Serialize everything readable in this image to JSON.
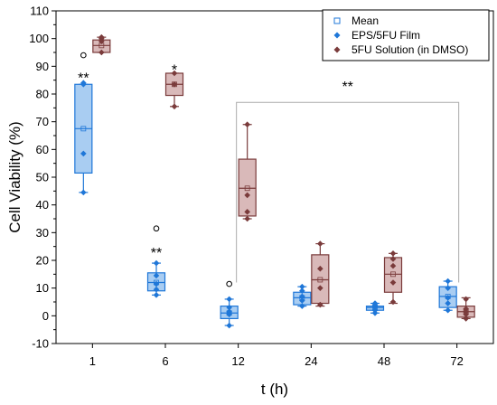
{
  "chart_data": {
    "type": "box",
    "xlabel": "t (h)",
    "ylabel": "Cell Viability (%)",
    "categories": [
      "1",
      "6",
      "12",
      "24",
      "48",
      "72"
    ],
    "ylim": [
      -10,
      110
    ],
    "yticks": [
      -10,
      0,
      10,
      20,
      30,
      40,
      50,
      60,
      70,
      80,
      90,
      100,
      110
    ],
    "grid": false,
    "legend_position": "top-right",
    "legend": {
      "mean_label": "Mean"
    },
    "series": [
      {
        "name": "EPS/5FU Film",
        "color": "#1f77d8",
        "fill": "#a9cdf2",
        "boxes": [
          {
            "q1": 51.5,
            "median": 67.5,
            "q3": 83.5,
            "whisker_low": 44.5,
            "whisker_high": 83.5,
            "mean": 67.5,
            "points": [
              44.5,
              58.5,
              83.5,
              84.0
            ],
            "outliers": [
              94.0
            ]
          },
          {
            "q1": 9.0,
            "median": 12.0,
            "q3": 15.5,
            "whisker_low": 7.5,
            "whisker_high": 19.0,
            "mean": 12.0,
            "points": [
              7.5,
              9.5,
              11.5,
              14.5,
              19.0
            ],
            "outliers": [
              31.5
            ]
          },
          {
            "q1": -1.0,
            "median": 1.0,
            "q3": 3.5,
            "whisker_low": -3.5,
            "whisker_high": 6.0,
            "mean": 1.0,
            "points": [
              -3.5,
              0.5,
              1.5,
              3.0,
              6.0
            ],
            "outliers": [
              11.5
            ]
          },
          {
            "q1": 4.0,
            "median": 6.5,
            "q3": 8.5,
            "whisker_low": 3.5,
            "whisker_high": 10.5,
            "mean": 6.5,
            "points": [
              3.5,
              5.5,
              7.0,
              9.0,
              10.5
            ],
            "outliers": []
          },
          {
            "q1": 2.0,
            "median": 3.0,
            "q3": 3.5,
            "whisker_low": 1.0,
            "whisker_high": 4.5,
            "mean": 3.0,
            "points": [
              1.0,
              2.0,
              3.0,
              4.0,
              4.5
            ],
            "outliers": []
          },
          {
            "q1": 3.0,
            "median": 7.0,
            "q3": 10.5,
            "whisker_low": 2.0,
            "whisker_high": 12.5,
            "mean": 7.0,
            "points": [
              2.0,
              4.5,
              6.5,
              10.0,
              12.5
            ],
            "outliers": []
          }
        ]
      },
      {
        "name": "5FU Solution (in DMSO)",
        "color": "#7a3b3b",
        "fill": "#d9b9b9",
        "boxes": [
          {
            "q1": 95.0,
            "median": 97.5,
            "q3": 99.5,
            "whisker_low": 95.0,
            "whisker_high": 100.5,
            "mean": 97.5,
            "points": [
              95.0,
              99.0,
              100.0,
              100.5
            ],
            "outliers": []
          },
          {
            "q1": 79.5,
            "median": 83.5,
            "q3": 87.5,
            "whisker_low": 75.5,
            "whisker_high": 87.5,
            "mean": 83.5,
            "points": [
              75.5,
              83.5,
              87.5
            ],
            "outliers": []
          },
          {
            "q1": 36.0,
            "median": 46.0,
            "q3": 56.5,
            "whisker_low": 35.0,
            "whisker_high": 69.0,
            "mean": 46.0,
            "points": [
              35.0,
              37.5,
              43.5,
              69.0
            ],
            "outliers": []
          },
          {
            "q1": 4.5,
            "median": 13.0,
            "q3": 22.0,
            "whisker_low": 3.5,
            "whisker_high": 26.0,
            "mean": 13.0,
            "points": [
              4.0,
              10.0,
              17.0,
              26.0
            ],
            "outliers": []
          },
          {
            "q1": 8.5,
            "median": 15.0,
            "q3": 21.0,
            "whisker_low": 4.5,
            "whisker_high": 22.5,
            "mean": 15.0,
            "points": [
              5.0,
              12.0,
              18.0,
              20.5,
              22.5
            ],
            "outliers": []
          },
          {
            "q1": -0.5,
            "median": 1.5,
            "q3": 3.5,
            "whisker_low": -1.0,
            "whisker_high": 6.5,
            "mean": 1.5,
            "points": [
              -1.0,
              0.5,
              1.5,
              2.5,
              6.0
            ],
            "outliers": []
          }
        ]
      }
    ],
    "annotations": [
      {
        "text": "**",
        "category": "1",
        "y": 86
      },
      {
        "text": "*",
        "category": "6",
        "y": 89
      },
      {
        "text": "**",
        "category": "6",
        "y": 23
      },
      {
        "text": "**",
        "category": "24-48",
        "y": 83
      }
    ],
    "bracket": {
      "from": "12",
      "to": "72",
      "y": 77,
      "drop_to": 12
    }
  }
}
